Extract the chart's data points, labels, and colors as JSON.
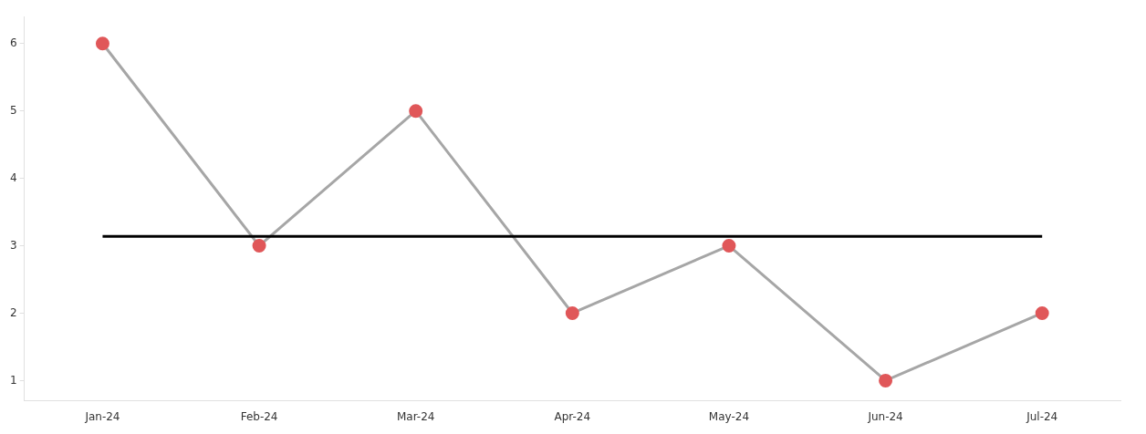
{
  "chart_data": {
    "type": "line",
    "categories": [
      "Jan-24",
      "Feb-24",
      "Mar-24",
      "Apr-24",
      "May-24",
      "Jun-24",
      "Jul-24"
    ],
    "series": [
      {
        "color": "#a6a6a6",
        "colors": [
          "#e05759",
          "#e05759",
          "#e05759",
          "#e05759",
          "#e05759",
          "#e05759",
          "#e05759"
        ],
        "values": [
          6,
          3,
          5,
          2,
          3,
          1,
          2
        ]
      }
    ],
    "marker": "circle",
    "line_style": "solid",
    "ylim": [
      0.7,
      6.4
    ],
    "yticks": [
      1,
      2,
      3,
      4,
      5,
      6
    ],
    "grid": false,
    "legend": false,
    "ref_lines": [
      {
        "axis": "y",
        "value": 3.14,
        "color": "#000000"
      }
    ]
  }
}
